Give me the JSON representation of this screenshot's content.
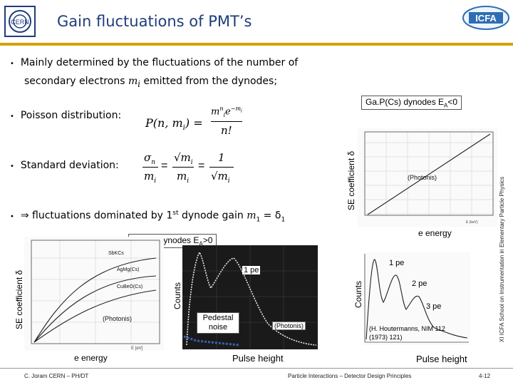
{
  "header": {
    "title": "Gain fluctuations of PMT’s",
    "left_logo": "CERN",
    "right_logo": "ICFA"
  },
  "bullets": {
    "b1_line1": "Mainly determined by the fluctuations of the number of",
    "b1_line2_pre": "secondary electrons ",
    "b1_var": "m",
    "b1_sub": "i",
    "b1_line2_post": " emitted from the dynodes;",
    "b2": "Poisson distribution:",
    "b3": "Standard deviation:",
    "b4_arrow": "⇒",
    "b4_pre": " fluctuations dominated by 1",
    "b4_sup": "st",
    "b4_post": " dynode gain ",
    "b4_var": "m",
    "b4_sub": "1",
    "b4_eq": " = δ",
    "b4_delta_sub": "1"
  },
  "formulas": {
    "poisson_lhs": "P(n, m",
    "poisson_lhs_sub": "i",
    "poisson_lhs_close": ") =",
    "poisson_num": "m",
    "poisson_num_sup": "n",
    "poisson_num_sub": "i",
    "poisson_num_exp": "e",
    "poisson_num_exp_sup": "−m",
    "poisson_num_exp_sup_sub": "i",
    "poisson_den": "n!",
    "sd_sigma": "σ",
    "sd_sigma_sub": "n",
    "sd_m": "m",
    "sd_m_sub": "i",
    "sd_eq": "=",
    "sd_sqrt_num": "√m",
    "sd_sqrt_num_sub": "i",
    "sd_one": "1",
    "sd_sqrt_den": "√m",
    "sd_sqrt_den_sub": "i"
  },
  "gap_chart": {
    "label_box": "Ga.P(Cs) dynodes E",
    "label_box_sub": "A",
    "label_box_tail": "<0",
    "ylabel": "SE coefficient δ",
    "photonis": "(Photonis)",
    "xlabel": "e energy",
    "xunit": "E (keV)"
  },
  "cube_chart": {
    "label_box": "Cu.Be dynodes E",
    "label_box_sub": "A",
    "label_box_tail": ">0",
    "ylabel": "SE coefficient δ",
    "curves": [
      "SbKCs",
      "AgMg(Cs)",
      "CuBeO(Cs)"
    ],
    "photonis": "(Photonis)",
    "xlabel": "e energy",
    "xunit": "E  [eV]"
  },
  "counts_photo": {
    "ylabel": "Counts",
    "pe1": "1 pe",
    "pedestal": "Pedestal noise",
    "photonis": "(Photonis)",
    "xlabel": "Pulse height"
  },
  "counts_spectrum": {
    "ylabel": "Counts",
    "pe1": "1 pe",
    "pe2": "2 pe",
    "pe3": "3 pe",
    "ref": "(H. Houtermanns, NIM 112 (1973) 121)",
    "xlabel": "Pulse height"
  },
  "side_text": "XI ICFA School on Instrumentation in Elementary Particle Physics",
  "footer": {
    "author": "C. Joram   CERN – PH/DT",
    "course": "Particle Interactions – Detector Design Principles",
    "page": "4-12"
  },
  "colors": {
    "title": "#1f3d7a",
    "rule": "#d6a000",
    "photo_bg": "#1a1a1a",
    "pedestal": "#3a5fb0"
  }
}
